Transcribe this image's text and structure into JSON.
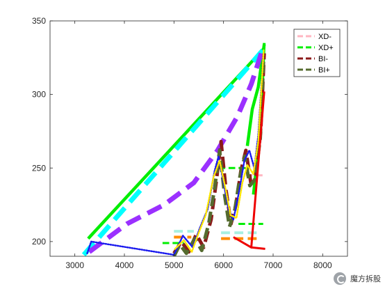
{
  "chart_data": {
    "type": "line",
    "title": "",
    "xlabel": "",
    "ylabel": "",
    "xlim": [
      2500,
      8500
    ],
    "ylim": [
      190,
      350
    ],
    "x_ticks": [
      3000,
      4000,
      5000,
      6000,
      7000,
      8000
    ],
    "x_tick_labels": [
      "3000",
      "4000",
      "5000",
      "6000",
      "7000",
      "8000"
    ],
    "y_ticks": [
      200,
      250,
      300,
      350
    ],
    "y_tick_labels": [
      "200",
      "250",
      "300",
      "350"
    ],
    "grid": false,
    "legend_position": "top-right",
    "legend": [
      {
        "label": "XD-",
        "color": "#ffb6c1",
        "dash": "dashed"
      },
      {
        "label": "XD+",
        "color": "#00ee00",
        "dash": "dashed"
      },
      {
        "label": "BI-",
        "color": "#8b1a1a",
        "dash": "dashed"
      },
      {
        "label": "BI+",
        "color": "#556b2f",
        "dash": "dashed"
      }
    ],
    "series": [
      {
        "color": "#00ee00",
        "style": "solid",
        "width": 4.5,
        "points": [
          [
            3270,
            202
          ],
          [
            6810,
            331
          ]
        ]
      },
      {
        "color": "#00ee00",
        "style": "solid",
        "width": 4.5,
        "points": [
          [
            6480,
            265
          ],
          [
            6580,
            290
          ],
          [
            6700,
            305
          ],
          [
            6820,
            334
          ]
        ]
      },
      {
        "color": "#00ee00",
        "style": "solid",
        "width": 4,
        "points": [
          [
            6820,
            335
          ],
          [
            6780,
            300
          ],
          [
            6740,
            280
          ],
          [
            6690,
            260
          ],
          [
            6600,
            232
          ]
        ]
      },
      {
        "color": "#00ee00",
        "style": "dashed",
        "width": 3,
        "points": [
          [
            4770,
            199
          ],
          [
            5200,
            199
          ]
        ]
      },
      {
        "color": "#00ee00",
        "style": "dashed",
        "width": 3,
        "points": [
          [
            6300,
            212
          ],
          [
            6800,
            212
          ]
        ]
      },
      {
        "color": "#00ee00",
        "style": "dashed",
        "width": 3,
        "points": [
          [
            5900,
            250
          ],
          [
            6500,
            250
          ]
        ]
      },
      {
        "color": "#00ffff",
        "style": "dashed",
        "width": 7,
        "points": [
          [
            3180,
            191
          ],
          [
            6790,
            330
          ]
        ]
      },
      {
        "color": "#a8f0e0",
        "style": "dashed",
        "width": 4,
        "points": [
          [
            5000,
            207
          ],
          [
            5400,
            207
          ]
        ]
      },
      {
        "color": "#a8f0e0",
        "style": "dashed",
        "width": 4,
        "points": [
          [
            5950,
            206
          ],
          [
            6750,
            206
          ]
        ]
      },
      {
        "color": "#9b30ff",
        "style": "dashed",
        "width": 7,
        "points": [
          [
            3290,
            193
          ],
          [
            4050,
            212
          ],
          [
            4800,
            225
          ],
          [
            5400,
            240
          ],
          [
            5880,
            262
          ],
          [
            6280,
            285
          ],
          [
            6560,
            307
          ],
          [
            6780,
            330
          ]
        ]
      },
      {
        "color": "#ffb6c1",
        "style": "dashed",
        "width": 3,
        "points": [
          [
            6450,
            245
          ],
          [
            6800,
            245
          ]
        ]
      },
      {
        "color": "#ff8c00",
        "style": "dashed",
        "width": 4,
        "points": [
          [
            5000,
            203
          ],
          [
            5350,
            203
          ]
        ]
      },
      {
        "color": "#ff8c00",
        "style": "dashed",
        "width": 4,
        "points": [
          [
            5950,
            202
          ],
          [
            6750,
            202
          ]
        ]
      },
      {
        "color": "#8b1a1a",
        "style": "dashed",
        "width": 5,
        "points": [
          [
            5000,
            192
          ],
          [
            5150,
            200
          ],
          [
            5300,
            193
          ],
          [
            5450,
            205
          ],
          [
            5600,
            196
          ],
          [
            5750,
            215
          ],
          [
            5850,
            240
          ],
          [
            5950,
            268
          ],
          [
            6050,
            235
          ],
          [
            6150,
            212
          ],
          [
            6250,
            225
          ],
          [
            6350,
            248
          ],
          [
            6450,
            262
          ],
          [
            6550,
            240
          ],
          [
            6650,
            245
          ],
          [
            6750,
            275
          ],
          [
            6820,
            328
          ]
        ]
      },
      {
        "color": "#556b2f",
        "style": "dashed",
        "width": 5,
        "points": [
          [
            5000,
            190
          ],
          [
            5120,
            198
          ],
          [
            5250,
            192
          ],
          [
            5420,
            202
          ],
          [
            5560,
            194
          ],
          [
            5700,
            212
          ],
          [
            5820,
            236
          ],
          [
            5920,
            262
          ],
          [
            6020,
            232
          ],
          [
            6120,
            210
          ],
          [
            6230,
            222
          ],
          [
            6330,
            244
          ],
          [
            6430,
            258
          ],
          [
            6530,
            238
          ],
          [
            6630,
            242
          ],
          [
            6740,
            270
          ],
          [
            6810,
            325
          ]
        ]
      },
      {
        "color": "#1a1aee",
        "style": "dotted",
        "width": 2.5,
        "points": [
          [
            3250,
            192
          ],
          [
            3330,
            200
          ],
          [
            5000,
            191
          ],
          [
            5180,
            204
          ],
          [
            5380,
            196
          ],
          [
            5520,
            209
          ],
          [
            5680,
            222
          ],
          [
            5820,
            248
          ],
          [
            5900,
            258
          ],
          [
            6000,
            240
          ],
          [
            6100,
            222
          ],
          [
            6200,
            215
          ],
          [
            6320,
            235
          ],
          [
            6420,
            255
          ],
          [
            6520,
            262
          ],
          [
            6620,
            250
          ],
          [
            6700,
            272
          ],
          [
            6800,
            325
          ]
        ]
      },
      {
        "color": "#ffe600",
        "style": "dotted",
        "width": 2.5,
        "points": [
          [
            5020,
            195
          ],
          [
            5200,
            201
          ],
          [
            5360,
            193
          ],
          [
            5500,
            206
          ],
          [
            5640,
            218
          ],
          [
            5800,
            244
          ],
          [
            5920,
            255
          ],
          [
            6040,
            236
          ],
          [
            6140,
            218
          ],
          [
            6260,
            216
          ],
          [
            6380,
            240
          ],
          [
            6480,
            252
          ],
          [
            6600,
            246
          ],
          [
            6700,
            268
          ],
          [
            6810,
            330
          ]
        ]
      },
      {
        "color": "#ee0000",
        "style": "solid",
        "width": 3,
        "points": [
          [
            6200,
            203
          ],
          [
            6560,
            196
          ],
          [
            6820,
            302
          ]
        ]
      },
      {
        "color": "#ee0000",
        "style": "solid",
        "width": 3,
        "points": [
          [
            6560,
            196
          ],
          [
            6840,
            195
          ]
        ]
      }
    ]
  },
  "watermark": {
    "text": "魔方拆股"
  }
}
